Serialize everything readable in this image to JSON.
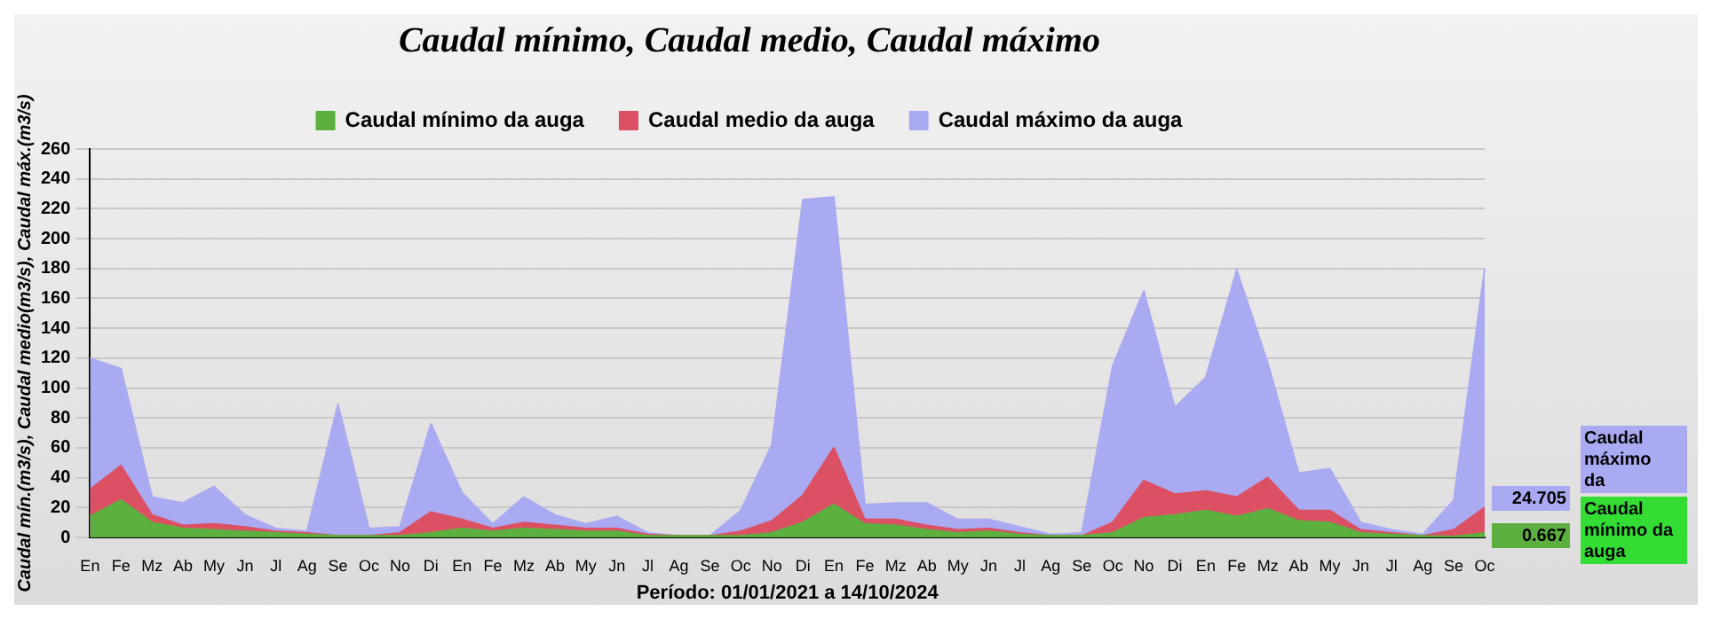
{
  "chart_data": {
    "type": "area",
    "title": "Caudal mínimo, Caudal medio, Caudal máximo",
    "xlabel": "Período: 01/01/2021 a 14/10/2024",
    "ylabel": "Caudal mín.(m3/s), Caudal medio(m3/s), Caudal máx.(m3/s)",
    "categories": [
      "En",
      "Fe",
      "Mz",
      "Ab",
      "My",
      "Jn",
      "Jl",
      "Ag",
      "Se",
      "Oc",
      "No",
      "Di",
      "En",
      "Fe",
      "Mz",
      "Ab",
      "My",
      "Jn",
      "Jl",
      "Ag",
      "Se",
      "Oc",
      "No",
      "Di",
      "En",
      "Fe",
      "Mz",
      "Ab",
      "My",
      "Jn",
      "Jl",
      "Ag",
      "Se",
      "Oc",
      "No",
      "Di",
      "En",
      "Fe",
      "Mz",
      "Ab",
      "My",
      "Jn",
      "Jl",
      "Ag",
      "Se",
      "Oc"
    ],
    "series": [
      {
        "name": "Caudal mínimo da auga",
        "color": "#5cb040",
        "values": [
          14,
          25,
          10,
          6,
          5,
          4,
          3,
          2,
          1,
          1,
          1,
          3,
          6,
          4,
          6,
          5,
          4,
          4,
          1,
          1,
          1,
          1,
          3,
          10,
          22,
          9,
          8,
          5,
          3,
          4,
          2,
          1,
          1,
          3,
          13,
          15,
          18,
          14,
          19,
          11,
          10,
          3,
          2,
          1,
          0.667,
          3
        ]
      },
      {
        "name": "Caudal medio da auga",
        "color": "#dc5064",
        "values": [
          32,
          48,
          15,
          8,
          9,
          7,
          4,
          3,
          1,
          1,
          3,
          17,
          12,
          6,
          10,
          8,
          6,
          6,
          2,
          1,
          1,
          4,
          11,
          28,
          60,
          12,
          12,
          8,
          5,
          6,
          3,
          1,
          1,
          10,
          38,
          29,
          31,
          27,
          40,
          18,
          18,
          5,
          3,
          1,
          5,
          20
        ]
      },
      {
        "name": "Caudal máximo da auga",
        "color": "#aaaaf2",
        "values": [
          120,
          113,
          27,
          23,
          34,
          15,
          6,
          4,
          89,
          6,
          7,
          76,
          30,
          9,
          27,
          15,
          9,
          14,
          3,
          1,
          1,
          18,
          62,
          226,
          228,
          22,
          23,
          23,
          12,
          12,
          7,
          2,
          3,
          115,
          165,
          87,
          107,
          179,
          117,
          43,
          46,
          10,
          5,
          2,
          24.705,
          180
        ]
      }
    ],
    "ylim": [
      0,
      260
    ],
    "yticks": [
      0,
      20,
      40,
      60,
      80,
      100,
      120,
      140,
      160,
      180,
      200,
      220,
      240,
      260
    ],
    "grid": "y",
    "legend": "top",
    "marker": "none",
    "annotations": [
      "24.705",
      "0.667",
      "Caudal máximo da",
      "Caudal mínimo da auga"
    ]
  }
}
